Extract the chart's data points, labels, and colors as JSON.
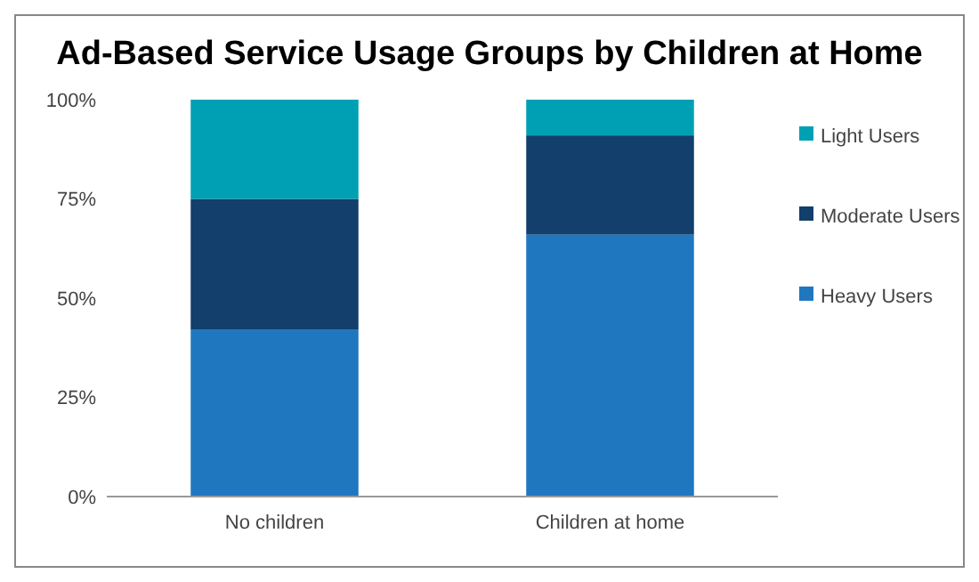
{
  "chart_data": {
    "type": "bar",
    "title": "Ad-Based Service Usage Groups by Children at Home",
    "categories": [
      "No children",
      "Children at home"
    ],
    "stacked": true,
    "series": [
      {
        "name": "Heavy Users",
        "color": "#1f77c0",
        "values": [
          42,
          66
        ]
      },
      {
        "name": "Moderate Users",
        "color": "#123f6b",
        "values": [
          33,
          25
        ]
      },
      {
        "name": "Light Users",
        "color": "#00a0b4",
        "values": [
          25,
          9
        ]
      }
    ],
    "ylim": [
      0,
      100
    ],
    "yticks": [
      {
        "value": 0,
        "label": "0%"
      },
      {
        "value": 25,
        "label": "25%"
      },
      {
        "value": 50,
        "label": "50%"
      },
      {
        "value": 75,
        "label": "75%"
      },
      {
        "value": 100,
        "label": "100%"
      }
    ],
    "grid": false,
    "legend": "right"
  }
}
